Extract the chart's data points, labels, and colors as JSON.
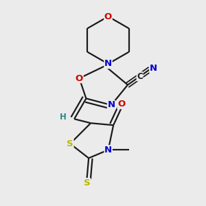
{
  "bg_color": "#ebebeb",
  "bond_color": "#1a1a1a",
  "atom_colors": {
    "N": "#0000cc",
    "O": "#cc0000",
    "S": "#b8b800",
    "C": "#1a1a1a",
    "H": "#2a8a8a"
  },
  "font_size": 9.5,
  "bond_width": 1.6,
  "fig_size": [
    3.0,
    3.0
  ],
  "dpi": 100,
  "xlim": [
    0.0,
    1.0
  ],
  "ylim": [
    0.05,
    1.05
  ]
}
